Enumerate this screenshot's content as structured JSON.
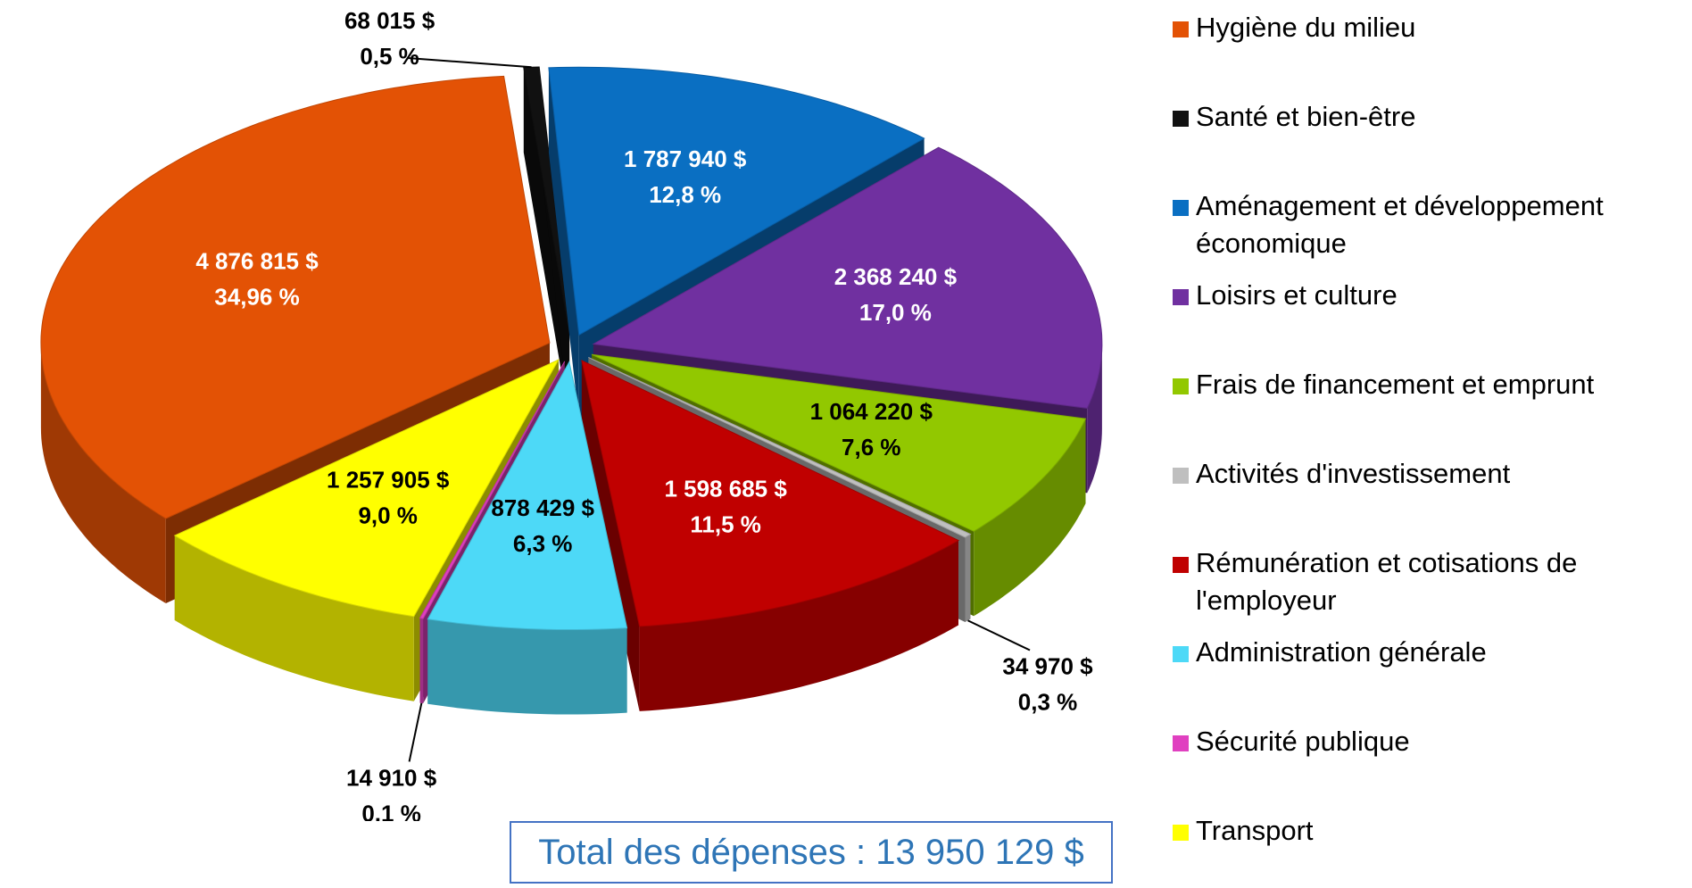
{
  "chart_data": {
    "type": "pie",
    "categories": [
      "Hygiène du milieu",
      "Santé et bien-être",
      "Aménagement et développement économique",
      "Loisirs et culture",
      "Frais de financement et emprunt",
      "Activités d'investissement",
      "Rémunération et cotisations de l'employeur",
      "Administration générale",
      "Sécurité publique",
      "Transport"
    ],
    "values": [
      4876815,
      68015,
      1787940,
      2368240,
      1064220,
      34970,
      1598685,
      878429,
      14910,
      1257905
    ],
    "value_labels": [
      "4 876 815 $",
      "68 015 $",
      "1 787 940 $",
      "2 368 240 $",
      "1 064 220 $",
      "34 970 $",
      "1 598 685 $",
      "878 429 $",
      "14 910 $",
      "1 257 905 $"
    ],
    "percent_labels": [
      "34,96 %",
      "0,5 %",
      "12,8 %",
      "17,0 %",
      "7,6 %",
      "0,3 %",
      "11,5 %",
      "6,3 %",
      "0,1 %",
      "9,0 %"
    ],
    "colors": [
      "#e35205",
      "#111111",
      "#0a6fc2",
      "#7030a0",
      "#92c800",
      "#bfbfbf",
      "#c00000",
      "#4dd9f7",
      "#e040c0",
      "#ffff00"
    ],
    "total_label": "Total des dépenses : 13 950 129 $",
    "legend": "right"
  }
}
